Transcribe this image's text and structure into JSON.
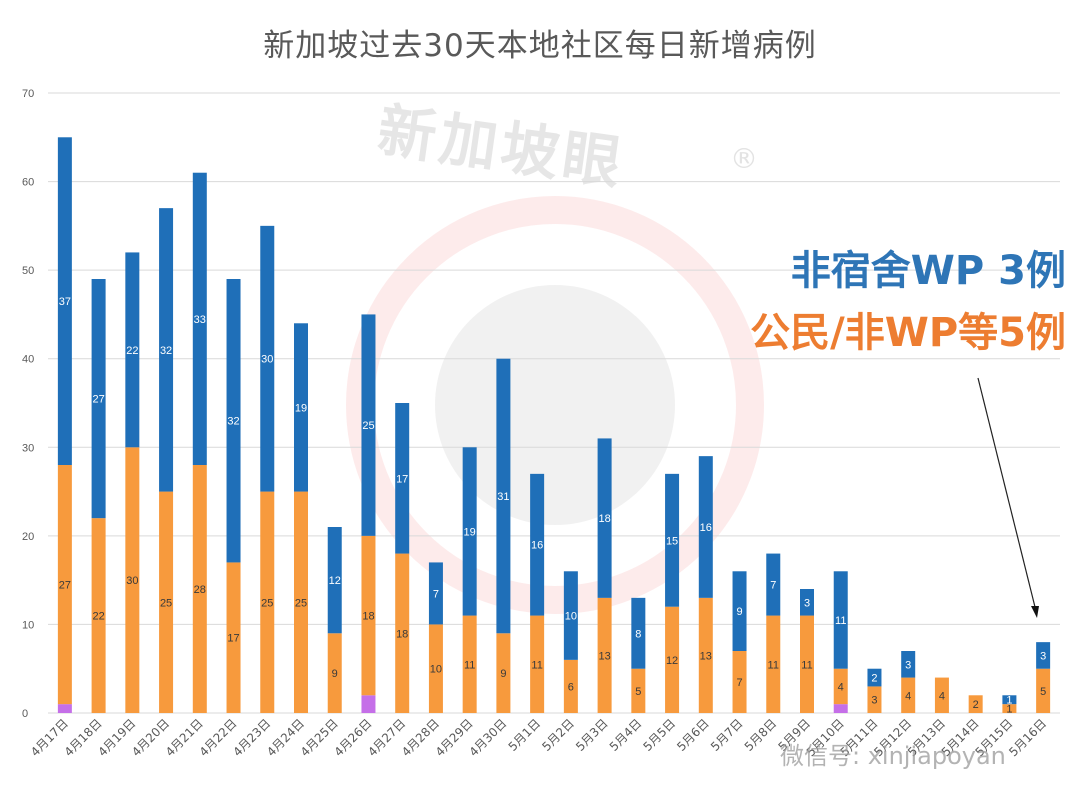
{
  "watermark": {
    "text": "新加坡眼",
    "mark": "®",
    "footer": "微信号: xinjiapoyan"
  },
  "annotations": {
    "line1": "非宿舍WP 3例",
    "line2": "公民/非WP等5例"
  },
  "colors": {
    "blue": "#1F6FB8",
    "orange": "#F79A3D",
    "purple": "#C56FE8"
  },
  "chart_data": {
    "type": "bar",
    "title": "新加坡过去30天本地社区每日新增病例",
    "xlabel": "",
    "ylabel": "",
    "ylim": [
      0,
      70
    ],
    "yticks": [
      0,
      10,
      20,
      30,
      40,
      50,
      60,
      70
    ],
    "grid": true,
    "stacked": true,
    "categories": [
      "4月17日",
      "4月18日",
      "4月19日",
      "4月20日",
      "4月21日",
      "4月22日",
      "4月23日",
      "4月24日",
      "4月25日",
      "4月26日",
      "4月27日",
      "4月28日",
      "4月29日",
      "4月30日",
      "5月1日",
      "5月2日",
      "5月3日",
      "5月4日",
      "5月5日",
      "5月6日",
      "5月7日",
      "5月8日",
      "5月9日",
      "5月10日",
      "5月11日",
      "5月12日",
      "5月13日",
      "5月14日",
      "5月15日",
      "5月16日"
    ],
    "series": [
      {
        "values": [
          1,
          0,
          0,
          0,
          0,
          0,
          0,
          0,
          0,
          2,
          0,
          0,
          0,
          0,
          0,
          0,
          0,
          0,
          0,
          0,
          0,
          0,
          0,
          1,
          0,
          0,
          0,
          0,
          0,
          0
        ]
      },
      {
        "values": [
          27,
          22,
          30,
          25,
          28,
          17,
          25,
          25,
          9,
          18,
          18,
          10,
          11,
          9,
          11,
          6,
          13,
          5,
          12,
          13,
          7,
          11,
          11,
          4,
          3,
          4,
          4,
          2,
          1,
          5
        ]
      },
      {
        "values": [
          37,
          27,
          22,
          32,
          33,
          32,
          30,
          19,
          12,
          25,
          17,
          7,
          19,
          31,
          16,
          10,
          18,
          8,
          15,
          16,
          9,
          7,
          3,
          11,
          2,
          3,
          0,
          0,
          1,
          3
        ]
      }
    ]
  }
}
